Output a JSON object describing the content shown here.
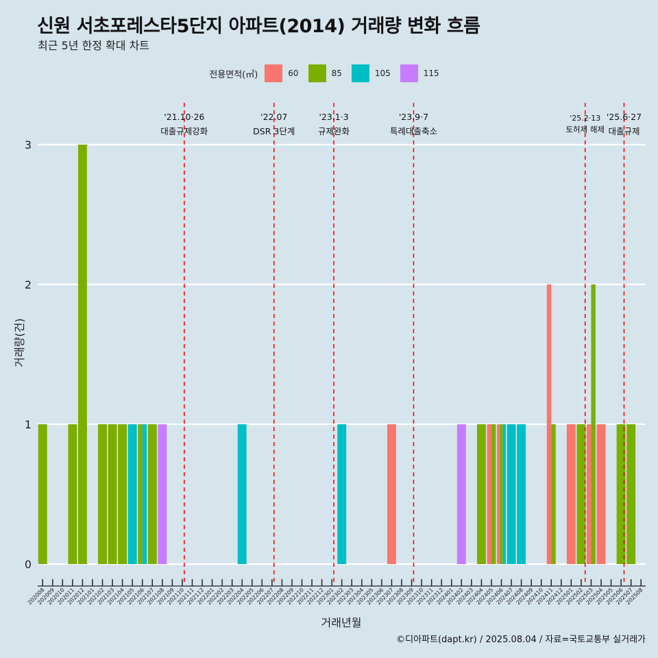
{
  "title": "신원 서초포레스타5단지 아파트(2014) 거래량 변화 흐름",
  "subtitle": "최근 5년 한정 확대 차트",
  "caption": "©디아파트(dapt.kr) / 2025.08.04 / 자료=국토교통부 실거래가",
  "legend": {
    "title": "전용면적(㎡)",
    "items": [
      {
        "label": "60",
        "color": "#f8766d"
      },
      {
        "label": "85",
        "color": "#7cae00"
      },
      {
        "label": "105",
        "color": "#00bfc4"
      },
      {
        "label": "115",
        "color": "#c77cff"
      }
    ]
  },
  "chart_data": {
    "type": "bar",
    "xlabel": "거래년월",
    "ylabel": "거래량(건)",
    "ylim": [
      0,
      3
    ],
    "yticks": [
      0,
      1,
      2,
      3
    ],
    "grid": true,
    "legend_position": "top",
    "categories": [
      "202008",
      "202009",
      "202010",
      "202011",
      "202012",
      "202101",
      "202102",
      "202103",
      "202104",
      "202105",
      "202106",
      "202107",
      "202108",
      "202109",
      "202110",
      "202111",
      "202112",
      "202201",
      "202202",
      "202203",
      "202204",
      "202205",
      "202206",
      "202207",
      "202208",
      "202209",
      "202210",
      "202211",
      "202212",
      "202301",
      "202302",
      "202303",
      "202304",
      "202305",
      "202306",
      "202307",
      "202308",
      "202309",
      "202310",
      "202311",
      "202312",
      "202401",
      "202402",
      "202403",
      "202404",
      "202405",
      "202406",
      "202407",
      "202408",
      "202409",
      "202410",
      "202411",
      "202412",
      "202501",
      "202502",
      "202503",
      "202504",
      "202505",
      "202506",
      "202507",
      "202508"
    ],
    "series": [
      {
        "name": "60",
        "color": "#f8766d",
        "values": [
          0,
          0,
          0,
          0,
          0,
          0,
          0,
          0,
          0,
          0,
          0,
          0,
          0,
          0,
          0,
          0,
          0,
          0,
          0,
          0,
          0,
          0,
          0,
          0,
          0,
          0,
          0,
          0,
          0,
          0,
          0,
          0,
          0,
          0,
          0,
          1,
          0,
          0,
          0,
          0,
          0,
          0,
          0,
          0,
          0,
          1,
          1,
          0,
          0,
          0,
          0,
          2,
          0,
          1,
          0,
          1,
          1,
          0,
          0,
          0,
          0
        ]
      },
      {
        "name": "85",
        "color": "#7cae00",
        "values": [
          1,
          0,
          0,
          1,
          3,
          0,
          1,
          1,
          1,
          0,
          1,
          1,
          0,
          0,
          0,
          0,
          0,
          0,
          0,
          0,
          0,
          0,
          0,
          0,
          0,
          0,
          0,
          0,
          0,
          0,
          0,
          0,
          0,
          0,
          0,
          0,
          0,
          0,
          0,
          0,
          0,
          0,
          0,
          0,
          1,
          1,
          1,
          0,
          0,
          0,
          0,
          1,
          0,
          0,
          1,
          2,
          0,
          0,
          1,
          1,
          0
        ]
      },
      {
        "name": "105",
        "color": "#00bfc4",
        "values": [
          0,
          0,
          0,
          0,
          0,
          0,
          0,
          0,
          0,
          1,
          1,
          0,
          0,
          0,
          0,
          0,
          0,
          0,
          0,
          0,
          1,
          0,
          0,
          0,
          0,
          0,
          0,
          0,
          0,
          0,
          1,
          0,
          0,
          0,
          0,
          0,
          0,
          0,
          0,
          0,
          0,
          0,
          0,
          0,
          0,
          0,
          1,
          1,
          1,
          0,
          0,
          0,
          0,
          0,
          0,
          0,
          0,
          0,
          0,
          0,
          0
        ]
      },
      {
        "name": "115",
        "color": "#c77cff",
        "values": [
          0,
          0,
          0,
          0,
          0,
          0,
          0,
          0,
          0,
          0,
          0,
          0,
          1,
          0,
          0,
          0,
          0,
          0,
          0,
          0,
          0,
          0,
          0,
          0,
          0,
          0,
          0,
          0,
          0,
          0,
          0,
          0,
          0,
          0,
          0,
          0,
          0,
          0,
          0,
          0,
          0,
          0,
          1,
          0,
          0,
          0,
          0,
          0,
          0,
          0,
          0,
          0,
          0,
          0,
          0,
          0,
          0,
          0,
          0,
          0,
          0
        ]
      }
    ],
    "annotations": [
      {
        "date": "202110",
        "pos": 14.2,
        "date_label": "'21.10·26",
        "event": "대출규제강화"
      },
      {
        "date": "202207",
        "pos": 23.2,
        "date_label": "'22.07",
        "event": "DSR 3단계"
      },
      {
        "date": "202301",
        "pos": 29.2,
        "date_label": "'23.1·3",
        "event": "규제완화"
      },
      {
        "date": "202309",
        "pos": 37.2,
        "date_label": "'23.9·7",
        "event": "특례대출축소"
      },
      {
        "date": "202502",
        "pos": 54.4,
        "date_label": "'25.2·13",
        "event": "토허제 해제"
      },
      {
        "date": "202506",
        "pos": 58.3,
        "date_label": "'25.6·27",
        "event": "대출규제"
      }
    ]
  }
}
